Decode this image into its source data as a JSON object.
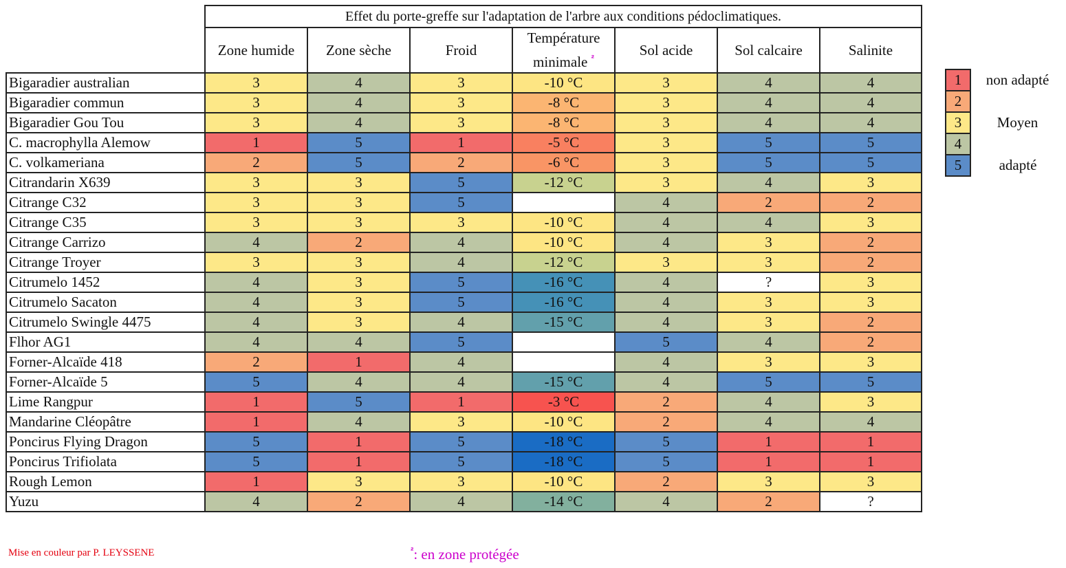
{
  "title": "Effet du porte-greffe sur l'adaptation de l'arbre aux conditions pédoclimatiques.",
  "columns": [
    {
      "label": "Zone humide"
    },
    {
      "label": "Zone sèche"
    },
    {
      "label": "Froid"
    },
    {
      "label": "Température minimale",
      "line1": "Température",
      "line2": "minimale",
      "sup": "²"
    },
    {
      "label": "Sol acide"
    },
    {
      "label": "Sol calcaire"
    },
    {
      "label": "Salinite"
    }
  ],
  "colors": {
    "1": "#f26b6b",
    "2": "#f8a978",
    "3": "#fde888",
    "4": "#bcc6a4",
    "5": "#5b8cc8",
    "?": "#ffffff",
    "": "#ffffff"
  },
  "temp_colors": {
    "-3 °C": "#f7534f",
    "-5 °C": "#f98060",
    "-6 °C": "#f99565",
    "-8 °C": "#fbb572",
    "-10 °C": "#fde583",
    "-12 °C": "#c8d28f",
    "-14 °C": "#82b09e",
    "-15 °C": "#62a0ac",
    "-16 °C": "#4591b7",
    "-18 °C": "#1a6cc4",
    "": "#ffffff"
  },
  "rows": [
    {
      "name": "Bigaradier australian",
      "values": [
        "3",
        "4",
        "3",
        "-10 °C",
        "3",
        "4",
        "4"
      ]
    },
    {
      "name": "Bigaradier commun",
      "values": [
        "3",
        "4",
        "3",
        "-8 °C",
        "3",
        "4",
        "4"
      ]
    },
    {
      "name": "Bigaradier Gou Tou",
      "values": [
        "3",
        "4",
        "3",
        "-8 °C",
        "3",
        "4",
        "4"
      ]
    },
    {
      "name": "C. macrophylla Alemow",
      "values": [
        "1",
        "5",
        "1",
        "-5 °C",
        "3",
        "5",
        "5"
      ]
    },
    {
      "name": "C. volkameriana",
      "values": [
        "2",
        "5",
        "2",
        "-6 °C",
        "3",
        "5",
        "5"
      ]
    },
    {
      "name": "Citrandarin X639",
      "values": [
        "3",
        "3",
        "5",
        "-12 °C",
        "3",
        "4",
        "3"
      ]
    },
    {
      "name": "Citrange C32",
      "values": [
        "3",
        "3",
        "5",
        "",
        "4",
        "2",
        "2"
      ]
    },
    {
      "name": "Citrange C35",
      "values": [
        "3",
        "3",
        "3",
        "-10 °C",
        "4",
        "4",
        "3"
      ]
    },
    {
      "name": "Citrange Carrizo",
      "values": [
        "4",
        "2",
        "4",
        "-10 °C",
        "4",
        "3",
        "2"
      ]
    },
    {
      "name": "Citrange Troyer",
      "values": [
        "3",
        "3",
        "4",
        "-12 °C",
        "3",
        "3",
        "2"
      ]
    },
    {
      "name": "Citrumelo 1452",
      "values": [
        "4",
        "3",
        "5",
        "-16 °C",
        "4",
        "?",
        "3"
      ]
    },
    {
      "name": "Citrumelo Sacaton",
      "values": [
        "4",
        "3",
        "5",
        "-16 °C",
        "4",
        "3",
        "3"
      ]
    },
    {
      "name": "Citrumelo Swingle 4475",
      "values": [
        "4",
        "3",
        "4",
        "-15 °C",
        "4",
        "3",
        "2"
      ]
    },
    {
      "name": "Flhor AG1",
      "values": [
        "4",
        "4",
        "5",
        "",
        "5",
        "4",
        "2"
      ]
    },
    {
      "name": "Forner-Alcaïde 418",
      "values": [
        "2",
        "1",
        "4",
        "",
        "4",
        "3",
        "3"
      ]
    },
    {
      "name": "Forner-Alcaïde 5",
      "values": [
        "5",
        "4",
        "4",
        "-15 °C",
        "4",
        "5",
        "5"
      ]
    },
    {
      "name": "Lime Rangpur",
      "values": [
        "1",
        "5",
        "1",
        "-3 °C",
        "2",
        "4",
        "3"
      ]
    },
    {
      "name": "Mandarine Cléopâtre",
      "values": [
        "1",
        "4",
        "3",
        "-10 °C",
        "2",
        "4",
        "4"
      ]
    },
    {
      "name": "Poncirus Flying Dragon",
      "values": [
        "5",
        "1",
        "5",
        "-18 °C",
        "5",
        "1",
        "1"
      ]
    },
    {
      "name": "Poncirus Trifiolata",
      "values": [
        "5",
        "1",
        "5",
        "-18 °C",
        "5",
        "1",
        "1"
      ]
    },
    {
      "name": "Rough Lemon",
      "values": [
        "1",
        "3",
        "3",
        "-10 °C",
        "2",
        "3",
        "3"
      ]
    },
    {
      "name": "Yuzu",
      "values": [
        "4",
        "2",
        "4",
        "-14 °C",
        "4",
        "2",
        "?"
      ]
    }
  ],
  "legend": [
    {
      "value": "1",
      "label": "non adapté"
    },
    {
      "value": "2",
      "label": ""
    },
    {
      "value": "3",
      "label": "Moyen"
    },
    {
      "value": "4",
      "label": ""
    },
    {
      "value": "5",
      "label": "adapté"
    }
  ],
  "footnote": {
    "marker": "²",
    "text": ": en zone protégée"
  },
  "credit": "Mise en couleur par P. LEYSSENE"
}
